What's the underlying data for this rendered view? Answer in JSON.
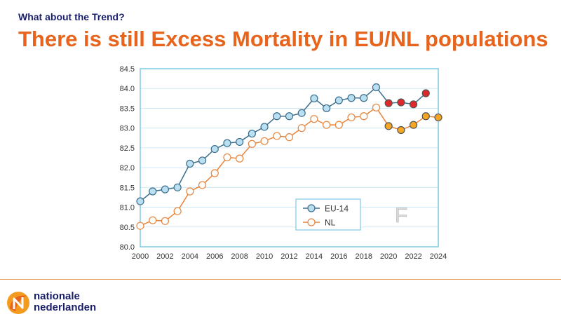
{
  "slide": {
    "kicker": "What about the Trend?",
    "title": "There is still Excess Mortality in EU/NL populations"
  },
  "brand": {
    "line1": "nationale",
    "line2": "nederlanden"
  },
  "watermark": "F",
  "colors": {
    "title": "#e8641c",
    "kicker": "#1a1f6b",
    "eu_line": "#3c6e8c",
    "eu_fill": "#b9dff0",
    "eu_highlight": "#e0282a",
    "nl_line": "#e8843c",
    "nl_fill": "#ffffff",
    "nl_highlight": "#f5a623",
    "frame": "#7ec8e8",
    "grid": "#cfe8f5"
  },
  "chart_data": {
    "type": "line",
    "x": [
      2000,
      2001,
      2002,
      2003,
      2004,
      2005,
      2006,
      2007,
      2008,
      2009,
      2010,
      2011,
      2012,
      2013,
      2014,
      2015,
      2016,
      2017,
      2018,
      2019,
      2020,
      2021,
      2022,
      2023,
      2024
    ],
    "series": [
      {
        "name": "EU-14",
        "values": [
          81.15,
          81.4,
          81.45,
          81.5,
          82.1,
          82.18,
          82.47,
          82.62,
          82.65,
          82.86,
          83.03,
          83.3,
          83.3,
          83.38,
          83.75,
          83.5,
          83.7,
          83.76,
          83.76,
          84.03,
          83.63,
          83.65,
          83.6,
          83.88,
          null
        ],
        "highlighted_x": [
          2020,
          2021,
          2022,
          2023
        ]
      },
      {
        "name": "NL",
        "values": [
          80.53,
          80.67,
          80.65,
          80.9,
          81.4,
          81.56,
          81.86,
          82.26,
          82.23,
          82.6,
          82.67,
          82.8,
          82.77,
          83.0,
          83.23,
          83.08,
          83.08,
          83.27,
          83.3,
          83.52,
          83.05,
          82.95,
          83.08,
          83.3,
          83.27
        ],
        "highlighted_x": [
          2020,
          2021,
          2022,
          2023,
          2024
        ]
      }
    ],
    "ylim": [
      80.0,
      84.5
    ],
    "yticks": [
      "80.0",
      "80.5",
      "81.0",
      "81.5",
      "82.0",
      "82.5",
      "83.0",
      "83.5",
      "84.0",
      "84.5"
    ],
    "xticks": [
      "2000",
      "2002",
      "2004",
      "2006",
      "2008",
      "2010",
      "2012",
      "2014",
      "2016",
      "2018",
      "2020",
      "2022",
      "2024"
    ],
    "xlim": [
      2000,
      2024
    ],
    "grid": true,
    "legend": "bottom-center"
  }
}
